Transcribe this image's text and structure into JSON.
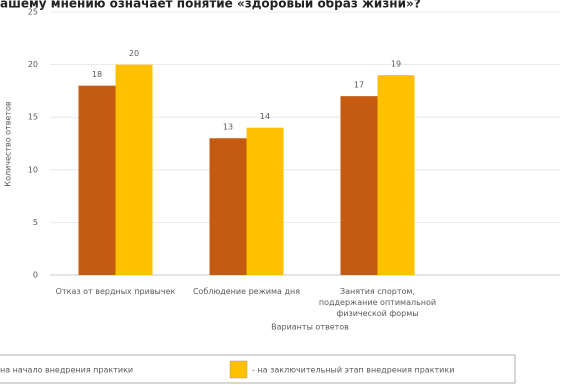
{
  "chart_data": {
    "type": "bar",
    "title": "ашему мнению означает понятие «здоровый образ жизни»?",
    "y_label": "Количество ответов",
    "x_label": "Варианты ответов",
    "categories": [
      "Отказ от вердных привычек",
      "Соблюдение режима дня",
      "Занятия спортом,\nподдержание оптимальной\nфизической формы"
    ],
    "series": [
      {
        "name": "на начало внедрения практики",
        "color": "#c55a11",
        "values": [
          18,
          13,
          17
        ]
      },
      {
        "name": "- на заключительный этап внедрения практики",
        "color": "#ffc000",
        "values": [
          20,
          14,
          19
        ]
      }
    ],
    "ylim": [
      0,
      25
    ],
    "yticks": [
      0,
      5,
      10,
      15,
      20,
      25
    ],
    "grid": true
  }
}
